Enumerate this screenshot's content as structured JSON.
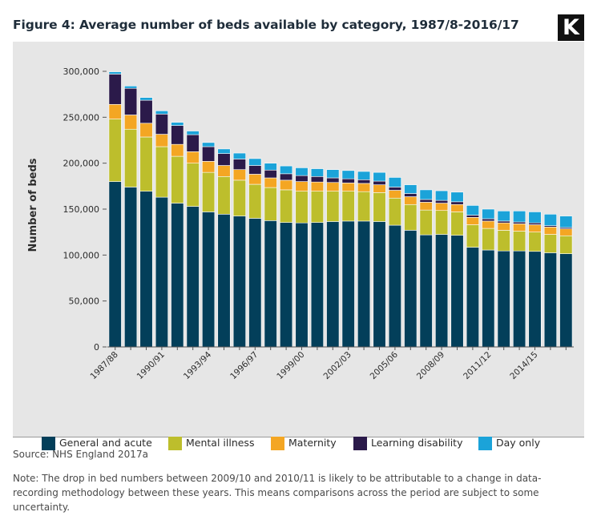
{
  "header": {
    "title": "Figure 4: Average number of beds available by category, 1987/8-2016/17",
    "logo": "K"
  },
  "footer": {
    "source": "Source: NHS England 2017a",
    "note": "Note: The drop in bed numbers between 2009/10 and 2010/11 is likely to be attributable to a change in data-recording methodology between these years. This means comparisons across the period are subject to some uncertainty."
  },
  "chart_data": {
    "type": "bar",
    "stacked": true,
    "title": "Figure 4: Average number of beds available by category, 1987/8-2016/17",
    "xlabel": "",
    "ylabel": "Number of beds",
    "ylim": [
      0,
      300000
    ],
    "yticks": [
      0,
      50000,
      100000,
      150000,
      200000,
      250000,
      300000
    ],
    "ytick_labels": [
      "0",
      "50,000",
      "100,000",
      "150,000",
      "200,000",
      "250,000",
      "300,000"
    ],
    "grid": false,
    "legend_position": "bottom",
    "categories": [
      "1987/88",
      "1988/89",
      "1989/90",
      "1990/91",
      "1991/92",
      "1992/93",
      "1993/94",
      "1994/95",
      "1995/96",
      "1996/97",
      "1997/98",
      "1998/99",
      "1999/00",
      "2000/01",
      "2001/02",
      "2002/03",
      "2003/04",
      "2004/05",
      "2005/06",
      "2006/07",
      "2007/08",
      "2008/09",
      "2009/10",
      "2010/11",
      "2011/12",
      "2012/13",
      "2013/14",
      "2014/15",
      "2015/16",
      "2016/17"
    ],
    "x_tick_labels_shown": [
      "1987/88",
      "1990/91",
      "1993/94",
      "1996/97",
      "1999/00",
      "2002/03",
      "2005/06",
      "2008/09",
      "2011/12",
      "2014/15"
    ],
    "series": [
      {
        "name": "General and acute",
        "color": "#033f5a",
        "values": [
          180000,
          174000,
          169500,
          163000,
          156500,
          153000,
          147000,
          144500,
          142500,
          140000,
          137500,
          135500,
          135000,
          135500,
          136500,
          137000,
          137000,
          136500,
          132500,
          127000,
          122000,
          122500,
          121500,
          108500,
          105500,
          104500,
          104500,
          104000,
          102500,
          101500
        ]
      },
      {
        "name": "Mental illness",
        "color": "#bdbe2c",
        "values": [
          68000,
          63000,
          59000,
          55000,
          51000,
          47000,
          43000,
          41000,
          39000,
          37000,
          36000,
          35500,
          34500,
          34000,
          33000,
          32500,
          32000,
          31500,
          29500,
          28000,
          27000,
          26000,
          25500,
          24500,
          23500,
          22500,
          21500,
          21000,
          20000,
          19500
        ]
      },
      {
        "name": "Maternity",
        "color": "#f4a623",
        "values": [
          16000,
          15500,
          15000,
          13500,
          13000,
          12500,
          12000,
          12000,
          11500,
          11000,
          10500,
          10500,
          10500,
          10000,
          9500,
          9000,
          9000,
          8500,
          8500,
          8500,
          8500,
          8000,
          8000,
          8000,
          8000,
          8000,
          8000,
          8000,
          8000,
          7500
        ]
      },
      {
        "name": "Learning disability",
        "color": "#2b1a4a",
        "values": [
          33000,
          29000,
          25000,
          22000,
          20500,
          18500,
          16000,
          13000,
          11500,
          9500,
          8500,
          7000,
          6500,
          6000,
          5000,
          4500,
          4000,
          4000,
          3500,
          3500,
          3000,
          3000,
          3000,
          2500,
          2500,
          2000,
          2000,
          2000,
          1500,
          1500
        ]
      },
      {
        "name": "Day only",
        "color": "#1ba3d9",
        "values": [
          2500,
          2500,
          3000,
          3500,
          3500,
          4000,
          4500,
          5000,
          6500,
          7500,
          7500,
          8500,
          8500,
          8500,
          9000,
          9000,
          9000,
          9500,
          10500,
          9500,
          10500,
          10500,
          10500,
          10500,
          10500,
          11000,
          12000,
          12000,
          12500,
          12500
        ]
      }
    ]
  }
}
